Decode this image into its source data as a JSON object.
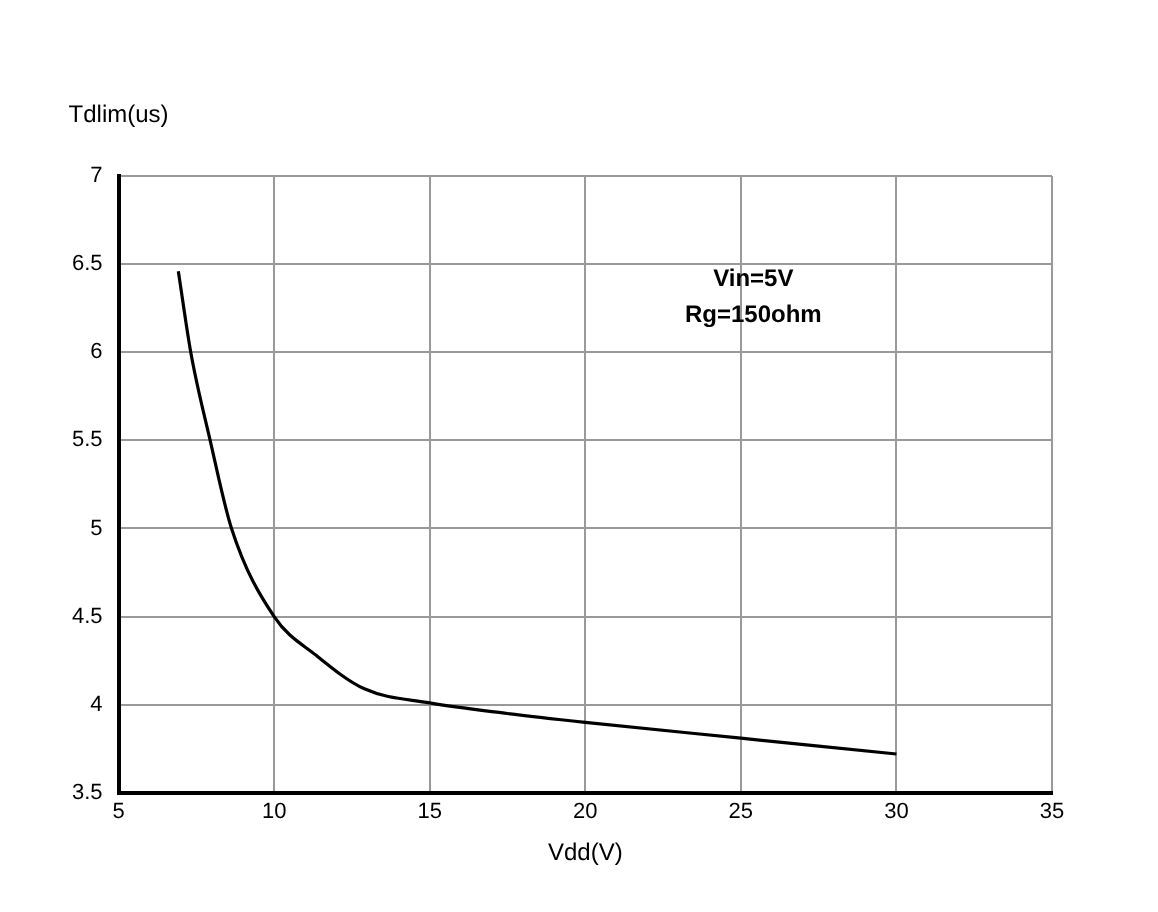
{
  "chart_data": {
    "type": "line",
    "xlabel": "Vdd(V)",
    "ylabel": "Tdlim(us)",
    "annotations": [
      "Vin=5V",
      "Rg=150ohm"
    ],
    "x": [
      6.92,
      7.33,
      7.93,
      8.63,
      10,
      11.35,
      12.9,
      15,
      17.5,
      20,
      25,
      30
    ],
    "series": [
      {
        "color": "#000000",
        "values": [
          6.46,
          5.99,
          5.51,
          5.0,
          4.5,
          4.28,
          4.09,
          4.01,
          3.95,
          3.9,
          3.81,
          3.72
        ]
      }
    ],
    "xlim": [
      5,
      35
    ],
    "xticks": [
      5,
      10,
      15,
      20,
      25,
      30,
      35
    ],
    "ylim": [
      3.5,
      7
    ],
    "yticks": [
      3.5,
      4,
      4.5,
      5,
      5.5,
      6,
      6.5,
      7
    ],
    "grid": true,
    "legend": false,
    "marker": "none",
    "line_style": "solid"
  }
}
